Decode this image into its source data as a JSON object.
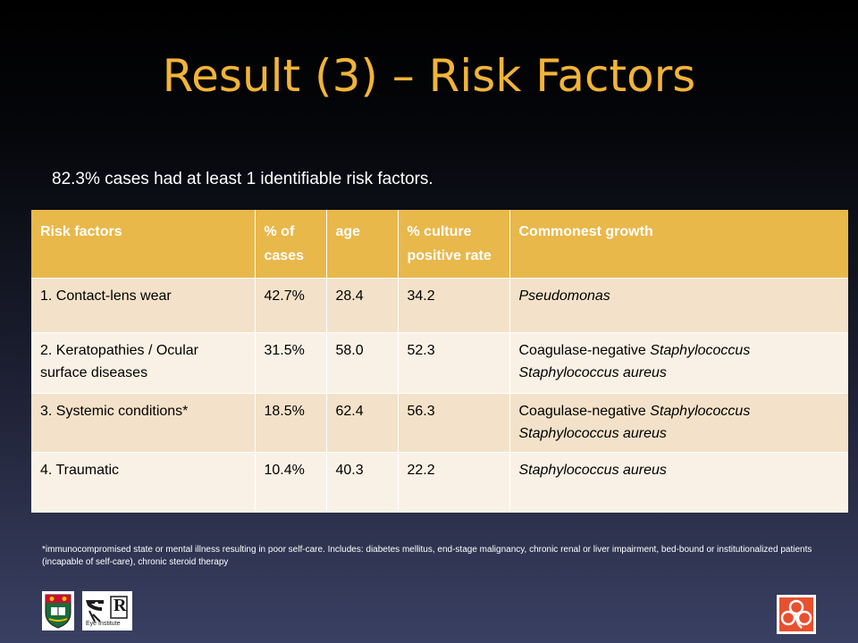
{
  "title": "Result (3) – Risk Factors",
  "subtitle": "82.3% cases had at least 1 identifiable risk factors.",
  "table": {
    "headers": [
      "Risk factors",
      "% of cases",
      "age",
      "% culture positive rate",
      "Commonest growth"
    ],
    "rows": [
      {
        "factor": "1. Contact-lens wear",
        "pct": "42.7%",
        "age": "28.4",
        "culture": "34.2",
        "growth_line1_plain": "",
        "growth_line1_italic": "Pseudomonas",
        "growth_line2": ""
      },
      {
        "factor": "2. Keratopathies / Ocular surface diseases",
        "pct": "31.5%",
        "age": "58.0",
        "culture": "52.3",
        "growth_line1_plain": "Coagulase-negative ",
        "growth_line1_italic": "Staphylococcus",
        "growth_line2": "Staphylococcus aureus"
      },
      {
        "factor": "3. Systemic conditions*",
        "pct": "18.5%",
        "age": "62.4",
        "culture": "56.3",
        "growth_line1_plain": "Coagulase-negative ",
        "growth_line1_italic": "Staphylococcus",
        "growth_line2": "Staphylococcus aureus"
      },
      {
        "factor": "4. Traumatic",
        "pct": "10.4%",
        "age": "40.3",
        "culture": "22.2",
        "growth_line1_plain": "",
        "growth_line1_italic": "Staphylococcus aureus",
        "growth_line2": ""
      }
    ]
  },
  "footnote": "*immunocompromised state or mental illness resulting in poor self-care. Includes: diabetes mellitus, end-stage malignancy, chronic renal or liver impairment, bed-bound or institutionalized patients (incapable of self-care), chronic steroid therapy",
  "logos": {
    "eye_institute_text": "Eye Institute",
    "eye_institute_letter": "R",
    "icons": [
      "university-crest-icon",
      "eye-institute-logo-icon",
      "hospital-authority-logo-icon"
    ]
  },
  "colors": {
    "title": "#f2b437",
    "header_bg": "#e8b84b",
    "row_odd": "#f3e2c9",
    "row_even": "#faf1e6"
  }
}
